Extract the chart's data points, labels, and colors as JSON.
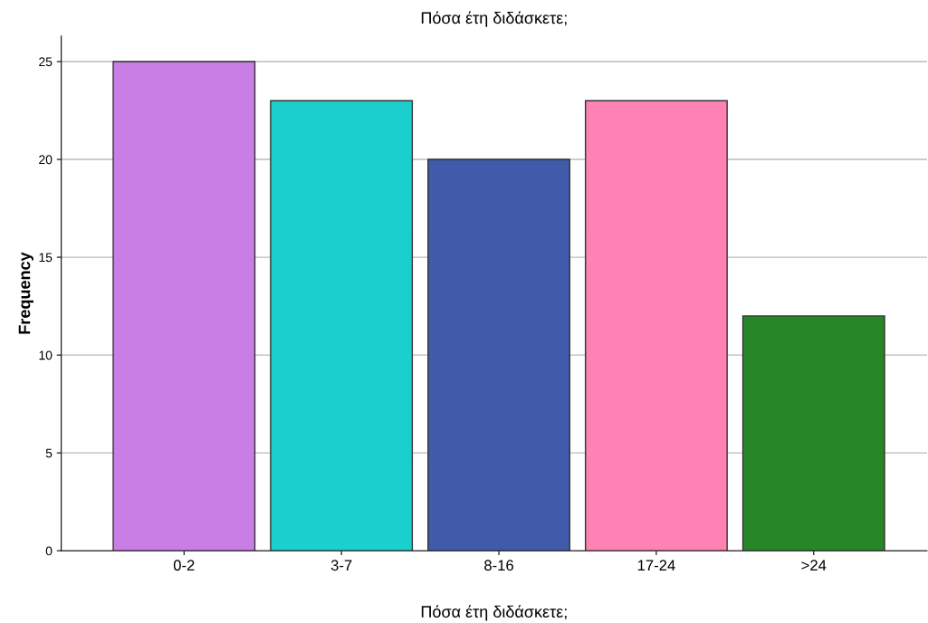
{
  "chart_data": {
    "type": "bar",
    "title": "Πόσα έτη διδάσκετε;",
    "xlabel": "Πόσα έτη διδάσκετε;",
    "ylabel": "Frequency",
    "categories": [
      "0-2",
      "3-7",
      "8-16",
      "17-24",
      ">24"
    ],
    "values": [
      25,
      23,
      20,
      23,
      12
    ],
    "colors": [
      "#c97ee6",
      "#1ccfcf",
      "#3f5ba9",
      "#ff82b4",
      "#278727"
    ],
    "ylim": [
      0,
      26.3
    ],
    "yticks": [
      0,
      5,
      10,
      15,
      20,
      25
    ],
    "grid": "y"
  }
}
